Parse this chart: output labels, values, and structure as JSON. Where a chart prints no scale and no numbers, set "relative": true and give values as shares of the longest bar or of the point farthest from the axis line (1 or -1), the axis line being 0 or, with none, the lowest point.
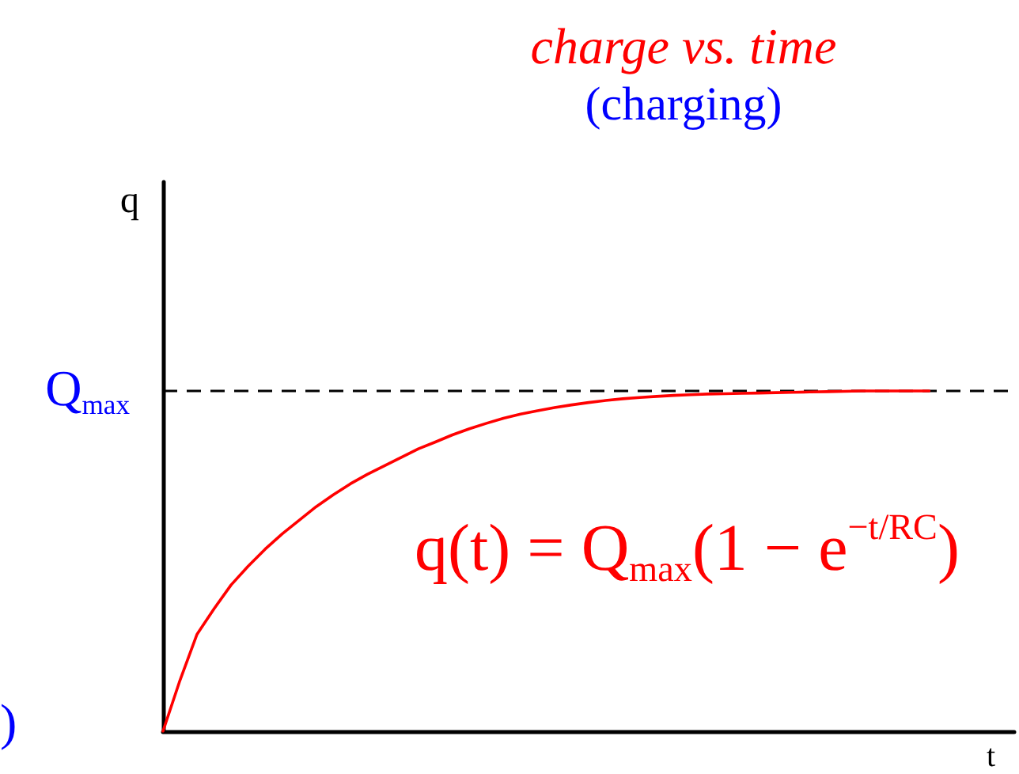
{
  "chart_data": {
    "type": "line",
    "title": "charge vs. time",
    "subtitle": "(charging)",
    "xlabel": "t",
    "ylabel": "q",
    "relative": true,
    "categories": [
      null,
      null,
      null,
      null,
      null,
      null,
      null,
      null,
      null,
      null,
      null,
      null,
      null,
      null,
      null,
      null,
      null,
      null,
      null,
      null,
      null,
      null,
      null,
      null,
      null,
      null,
      null,
      null,
      null,
      null,
      null,
      null,
      null,
      null,
      null,
      null,
      null,
      null,
      null,
      null,
      null,
      null,
      null,
      null,
      null,
      null,
      null,
      null,
      null,
      null,
      null
    ],
    "values": [
      0,
      0.15,
      0.285,
      0.36,
      0.43,
      0.485,
      0.535,
      0.58,
      0.62,
      0.66,
      0.695,
      0.727,
      0.755,
      0.78,
      0.805,
      0.83,
      0.85,
      0.871,
      0.889,
      0.905,
      0.92,
      0.932,
      0.942,
      0.951,
      0.959,
      0.966,
      0.972,
      0.977,
      0.981,
      0.984,
      0.987,
      0.989,
      0.991,
      0.992,
      0.993,
      0.994,
      0.995,
      0.996,
      0.997,
      0.998,
      0.999,
      1,
      1,
      1,
      1,
      1,
      null,
      null,
      null,
      null,
      null
    ],
    "color": "#ff0000",
    "ref_lines": [
      {
        "axis": "y",
        "value": 1,
        "label": "Q$_{max}$",
        "color": "#000000",
        "line_style": "dashed"
      }
    ],
    "annotations": [
      "q(t) = Q$_{max}$(1 − e$^{−t/RC}$)",
      ")"
    ]
  }
}
